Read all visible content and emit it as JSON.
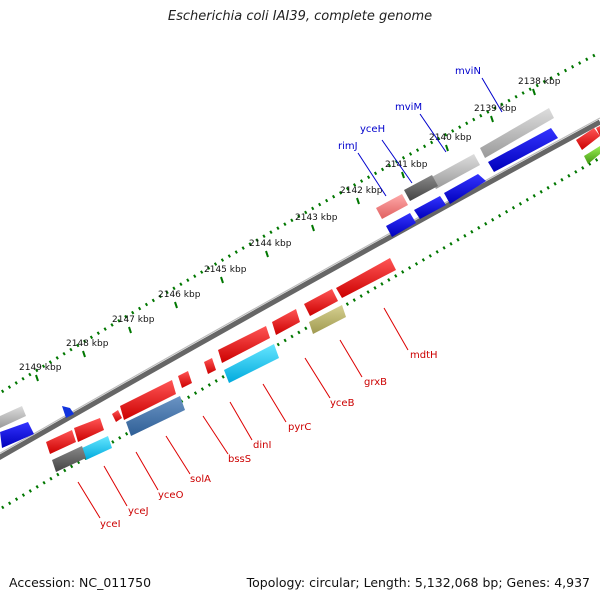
{
  "title": "Escherichia coli IAI39, complete genome",
  "footer": {
    "accession": "Accession: NC_011750",
    "topology": "Topology: circular; Length: 5,132,068 bp; Genes: 4,937"
  },
  "kbp_labels": [
    "2138 kbp",
    "2139 kbp",
    "2140 kbp",
    "2141 kbp",
    "2142 kbp",
    "2143 kbp",
    "2144 kbp",
    "2145 kbp",
    "2146 kbp",
    "2147 kbp",
    "2148 kbp",
    "2149 kbp"
  ],
  "top_genes": [
    "mviN",
    "mviM",
    "yceH",
    "rimJ"
  ],
  "bottom_genes": [
    "mdtH",
    "grxB",
    "yceB",
    "pyrC",
    "dinI",
    "bssS",
    "solA",
    "yceO",
    "yceJ",
    "yceI"
  ],
  "colors": {
    "outer_strand": "#0000ee",
    "inner_strand": "#ee0000",
    "backbone": "#555555",
    "tick": "#007700"
  }
}
